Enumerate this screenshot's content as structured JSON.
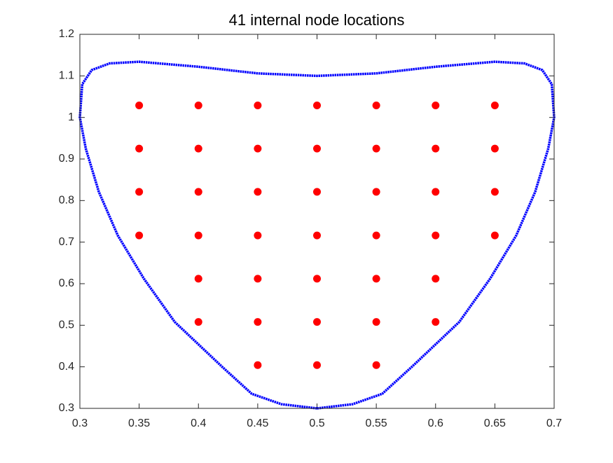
{
  "chart_data": {
    "type": "scatter",
    "title": "41 internal node locations",
    "xlim": [
      0.3,
      0.7
    ],
    "xticks": [
      0.3,
      0.35,
      0.4,
      0.45,
      0.5,
      0.55,
      0.6,
      0.65,
      0.7
    ],
    "ylim": [
      0.3,
      1.2
    ],
    "yticks": [
      0.3,
      0.4,
      0.5,
      0.6,
      0.7,
      0.8,
      0.9,
      1,
      1.1,
      1.2
    ],
    "grid": false,
    "series": [
      {
        "type": "line",
        "color": "#0000ff",
        "x": [
          0.5,
          0.53,
          0.555,
          0.58,
          0.62,
          0.646,
          0.668,
          0.684,
          0.695,
          0.7,
          0.698,
          0.69,
          0.675,
          0.65,
          0.6,
          0.55,
          0.5,
          0.45,
          0.4,
          0.35,
          0.325,
          0.31,
          0.302,
          0.3,
          0.305,
          0.316,
          0.332,
          0.354,
          0.38,
          0.42,
          0.445,
          0.47,
          0.5
        ],
        "values": [
          0.3,
          0.31,
          0.335,
          0.4,
          0.508,
          0.612,
          0.716,
          0.821,
          0.925,
          1.0,
          1.08,
          1.114,
          1.13,
          1.134,
          1.122,
          1.106,
          1.1,
          1.106,
          1.122,
          1.134,
          1.13,
          1.114,
          1.08,
          1.0,
          0.925,
          0.821,
          0.716,
          0.612,
          0.508,
          0.4,
          0.335,
          0.31,
          0.3
        ]
      },
      {
        "type": "scatter",
        "color": "#ff0000",
        "x": [
          0.35,
          0.4,
          0.45,
          0.5,
          0.55,
          0.6,
          0.65,
          0.35,
          0.4,
          0.45,
          0.5,
          0.55,
          0.6,
          0.65,
          0.35,
          0.4,
          0.45,
          0.5,
          0.55,
          0.6,
          0.65,
          0.35,
          0.4,
          0.45,
          0.5,
          0.55,
          0.6,
          0.65,
          0.4,
          0.45,
          0.5,
          0.55,
          0.6,
          0.4,
          0.45,
          0.5,
          0.55,
          0.6,
          0.45,
          0.5,
          0.55
        ],
        "values": [
          1.029,
          1.029,
          1.029,
          1.029,
          1.029,
          1.029,
          1.029,
          0.925,
          0.925,
          0.925,
          0.925,
          0.925,
          0.925,
          0.925,
          0.821,
          0.821,
          0.821,
          0.821,
          0.821,
          0.821,
          0.821,
          0.716,
          0.716,
          0.716,
          0.716,
          0.716,
          0.716,
          0.716,
          0.612,
          0.612,
          0.612,
          0.612,
          0.612,
          0.508,
          0.508,
          0.508,
          0.508,
          0.508,
          0.404,
          0.404,
          0.404
        ]
      }
    ]
  }
}
